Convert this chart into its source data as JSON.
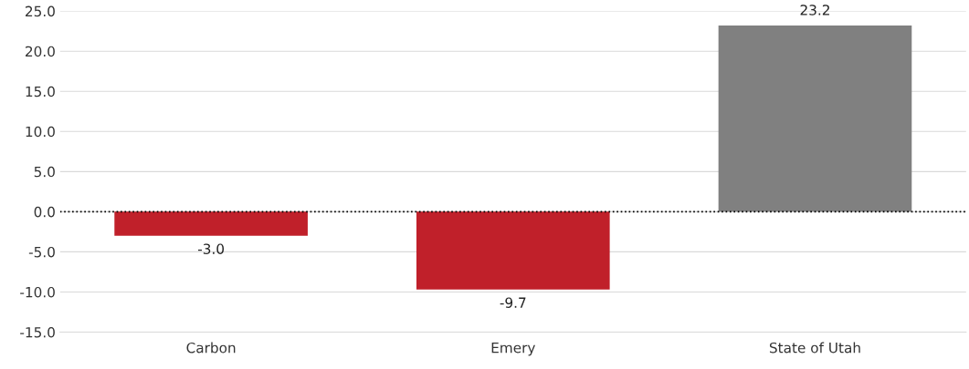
{
  "chart_data": {
    "type": "bar",
    "categories": [
      "Carbon",
      "Emery",
      "State of Utah"
    ],
    "values": [
      -3.0,
      -9.7,
      23.2
    ],
    "colors": [
      "#c0202a",
      "#c0202a",
      "#808080"
    ],
    "ylim": [
      -15,
      25
    ],
    "yticks": [
      {
        "value": -15,
        "label": "-15.0"
      },
      {
        "value": -10,
        "label": "-10.0"
      },
      {
        "value": -5,
        "label": "-5.0"
      },
      {
        "value": 0,
        "label": "0.0"
      },
      {
        "value": 5,
        "label": "5.0"
      },
      {
        "value": 10,
        "label": "10.0"
      },
      {
        "value": 15,
        "label": "15.0"
      },
      {
        "value": 20,
        "label": "20.0"
      },
      {
        "value": 25,
        "label": "25.0"
      }
    ],
    "value_labels": [
      "-3.0",
      "-9.7",
      "23.2"
    ],
    "ref_lines": [
      {
        "axis": "y",
        "value": 0,
        "color": "#000000",
        "line_style": "dotted"
      }
    ],
    "grid": "y",
    "legend": false
  }
}
